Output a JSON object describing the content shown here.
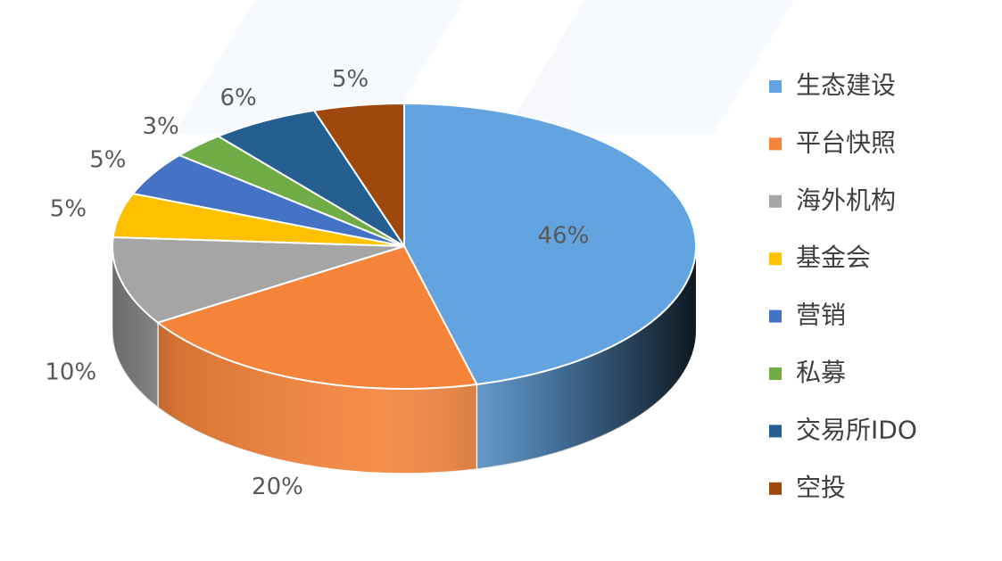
{
  "chart_data": {
    "type": "pie",
    "categories": [
      "生态建设",
      "平台快照",
      "海外机构",
      "基金会",
      "营销",
      "私募",
      "交易所IDO",
      "空投"
    ],
    "values": [
      46,
      20,
      10,
      5,
      5,
      3,
      6,
      5
    ],
    "value_labels": [
      "46%",
      "20%",
      "10%",
      "5%",
      "5%",
      "3%",
      "6%",
      "5%"
    ],
    "colors": [
      "#62a3e0",
      "#f5843a",
      "#a5a5a5",
      "#ffc000",
      "#4472c4",
      "#70ad47",
      "#255e91",
      "#9e480e"
    ],
    "legend": "right"
  }
}
